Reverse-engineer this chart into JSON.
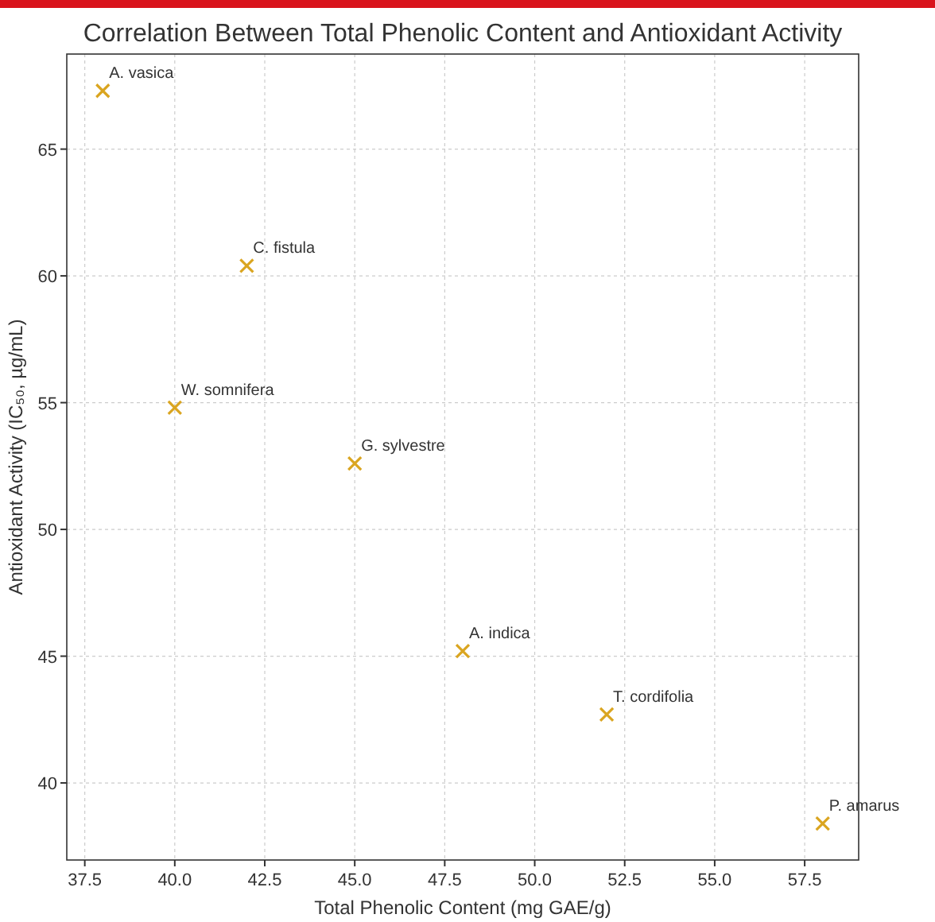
{
  "chart_data": {
    "type": "scatter",
    "title": "Correlation Between Total Phenolic Content and Antioxidant Activity",
    "xlabel": "Total Phenolic Content (mg GAE/g)",
    "ylabel": "Antioxidant Activity (IC₅₀, µg/mL)",
    "x": [
      38,
      42,
      40,
      45,
      48,
      52,
      58
    ],
    "series": [
      {
        "color": "#daa520",
        "values": [
          67.3,
          60.4,
          54.8,
          52.6,
          45.2,
          42.7,
          38.4
        ]
      }
    ],
    "annotations": [
      {
        "text": "A. vasica",
        "x": 38,
        "y": 67.3
      },
      {
        "text": "C. fistula",
        "x": 42,
        "y": 60.4
      },
      {
        "text": "W. somnifera",
        "x": 40,
        "y": 54.8
      },
      {
        "text": "G. sylvestre",
        "x": 45,
        "y": 52.6
      },
      {
        "text": "A. indica",
        "x": 48,
        "y": 45.2
      },
      {
        "text": "T. cordifolia",
        "x": 52,
        "y": 42.7
      },
      {
        "text": "P. amarus",
        "x": 58,
        "y": 38.4
      }
    ],
    "xlim": [
      37,
      59
    ],
    "xticks": [
      {
        "value": 37.5,
        "label": "37.5"
      },
      {
        "value": 40,
        "label": "40.0"
      },
      {
        "value": 42.5,
        "label": "42.5"
      },
      {
        "value": 45,
        "label": "45.0"
      },
      {
        "value": 47.5,
        "label": "47.5"
      },
      {
        "value": 50,
        "label": "50.0"
      },
      {
        "value": 52.5,
        "label": "52.5"
      },
      {
        "value": 55,
        "label": "55.0"
      },
      {
        "value": 57.5,
        "label": "57.5"
      }
    ],
    "ylim": [
      36.96,
      68.75
    ],
    "yticks": [
      40,
      45,
      50,
      55,
      60,
      65
    ],
    "grid": true,
    "marker": "cross"
  }
}
